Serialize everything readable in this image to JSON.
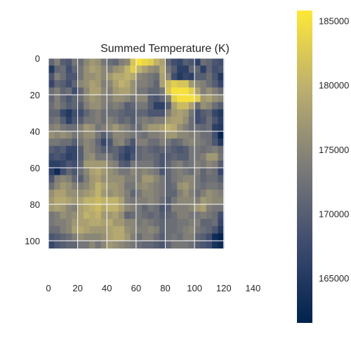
{
  "chart_data": {
    "type": "heatmap",
    "title": "Summed Temperature (K)",
    "xlabel": "",
    "ylabel": "",
    "grid": true,
    "colormap": "cividis",
    "x_range": [
      0,
      159
    ],
    "y_range": [
      0,
      119
    ],
    "x_ticks": [
      "0",
      "20",
      "40",
      "60",
      "80",
      "100",
      "120",
      "140"
    ],
    "y_ticks": [
      "0",
      "20",
      "40",
      "60",
      "80",
      "100"
    ],
    "colorbar": {
      "range": [
        161500,
        185800
      ],
      "ticks": [
        "165000",
        "170000",
        "175000",
        "180000",
        "185000"
      ]
    },
    "cell_size": 4,
    "values": [
      [
        171000,
        174000,
        170000,
        169000,
        173000,
        172000,
        175000,
        177000,
        176000,
        173000,
        172000,
        171000,
        174000,
        175000,
        182000,
        185000,
        184000,
        183000,
        180000,
        178000,
        171000,
        168000,
        167000,
        170000,
        169000,
        166000,
        172000,
        171000,
        169000,
        168000
      ],
      [
        165000,
        171000,
        172000,
        168000,
        171000,
        173000,
        176000,
        178000,
        177000,
        175000,
        174000,
        176000,
        177000,
        180000,
        183000,
        180000,
        178000,
        176000,
        175000,
        179000,
        173000,
        170000,
        166000,
        166000,
        171000,
        171000,
        166000,
        171000,
        168000,
        169000
      ],
      [
        169000,
        174000,
        172000,
        169000,
        169000,
        173000,
        176000,
        176000,
        177000,
        175000,
        177000,
        179000,
        179000,
        180000,
        179000,
        175000,
        174000,
        173000,
        172000,
        178000,
        175000,
        168000,
        165000,
        167000,
        166000,
        170000,
        170000,
        172000,
        169000,
        165000
      ],
      [
        167000,
        171000,
        170000,
        168000,
        171000,
        175000,
        176000,
        178000,
        177000,
        174000,
        175000,
        178000,
        180000,
        179000,
        176000,
        174000,
        174000,
        173000,
        171000,
        178000,
        181000,
        183000,
        182000,
        182000,
        177000,
        175000,
        174000,
        172000,
        170000,
        167000
      ],
      [
        172000,
        174000,
        171000,
        172000,
        168000,
        171000,
        175000,
        178000,
        178000,
        175000,
        174000,
        177000,
        178000,
        178000,
        176000,
        173000,
        173000,
        171000,
        171000,
        173000,
        182000,
        185000,
        185000,
        185000,
        183000,
        178000,
        174000,
        176000,
        174000,
        172000
      ],
      [
        171000,
        174000,
        171000,
        169000,
        171000,
        172000,
        175000,
        177000,
        176000,
        174000,
        174000,
        176000,
        176000,
        175000,
        173000,
        175000,
        175000,
        170000,
        169000,
        171000,
        174000,
        183000,
        185000,
        185000,
        185000,
        183000,
        177000,
        178000,
        176000,
        175000
      ],
      [
        172000,
        174000,
        172000,
        170000,
        171000,
        170000,
        174000,
        176000,
        176000,
        174000,
        173000,
        174000,
        173000,
        170000,
        171000,
        173000,
        173000,
        170000,
        166000,
        166000,
        170000,
        178000,
        181000,
        181000,
        178000,
        172000,
        176000,
        175000,
        172000,
        170000
      ],
      [
        171000,
        171000,
        167000,
        165000,
        168000,
        168000,
        171000,
        173000,
        174000,
        172000,
        172000,
        172000,
        171000,
        170000,
        170000,
        171000,
        171000,
        169000,
        169000,
        169000,
        174000,
        177000,
        178000,
        177000,
        173000,
        168000,
        170000,
        171000,
        167000,
        165000
      ],
      [
        172000,
        173000,
        170000,
        166000,
        169000,
        170000,
        173000,
        173000,
        174000,
        172000,
        174000,
        173000,
        171000,
        172000,
        170000,
        173000,
        174000,
        173000,
        174000,
        174000,
        177000,
        178000,
        178000,
        176000,
        172000,
        168000,
        169000,
        172000,
        169000,
        166000
      ],
      [
        174000,
        175000,
        173000,
        172000,
        172000,
        174000,
        177000,
        176000,
        173000,
        174000,
        175000,
        177000,
        175000,
        174000,
        172000,
        172000,
        175000,
        177000,
        177000,
        178000,
        180000,
        179000,
        176000,
        174000,
        172000,
        172000,
        171000,
        172000,
        166000,
        165000
      ],
      [
        176000,
        175000,
        176000,
        175000,
        173000,
        174000,
        176000,
        176000,
        173000,
        170000,
        172000,
        175000,
        175000,
        174000,
        173000,
        173000,
        172000,
        174000,
        174000,
        175000,
        177000,
        177000,
        175000,
        175000,
        174000,
        174000,
        172000,
        172000,
        168000,
        162000
      ],
      [
        173000,
        173000,
        172000,
        172000,
        170000,
        173000,
        175000,
        174000,
        171000,
        167000,
        169000,
        174000,
        175000,
        172000,
        169000,
        174000,
        174000,
        172000,
        172000,
        174000,
        173000,
        171000,
        172000,
        174000,
        175000,
        174000,
        173000,
        172000,
        169000,
        165000
      ],
      [
        170000,
        169000,
        170000,
        167000,
        167000,
        170000,
        175000,
        174000,
        172000,
        170000,
        170000,
        171000,
        169000,
        167000,
        168000,
        171000,
        172000,
        171000,
        170000,
        171000,
        171000,
        170000,
        169000,
        170000,
        173000,
        173000,
        172000,
        173000,
        174000,
        172000
      ],
      [
        168000,
        169000,
        168000,
        166000,
        167000,
        170000,
        175000,
        176000,
        173000,
        173000,
        173000,
        171000,
        168000,
        166000,
        169000,
        171000,
        172000,
        172000,
        171000,
        169000,
        170000,
        171000,
        170000,
        170000,
        173000,
        173000,
        174000,
        177000,
        177000,
        173000
      ],
      [
        166000,
        166000,
        167000,
        169000,
        168000,
        171000,
        177000,
        177000,
        177000,
        177000,
        175000,
        174000,
        170000,
        169000,
        173000,
        173000,
        173000,
        173000,
        171000,
        169000,
        171000,
        173000,
        174000,
        172000,
        173000,
        174000,
        173000,
        175000,
        174000,
        170000
      ],
      [
        166000,
        163000,
        168000,
        171000,
        169000,
        172000,
        175000,
        178000,
        179000,
        177000,
        176000,
        175000,
        173000,
        173000,
        175000,
        174000,
        175000,
        174000,
        173000,
        169000,
        171000,
        173000,
        174000,
        173000,
        172000,
        174000,
        171000,
        173000,
        172000,
        167000
      ],
      [
        169000,
        174000,
        175000,
        174000,
        171000,
        170000,
        174000,
        177000,
        178000,
        176000,
        176000,
        176000,
        176000,
        174000,
        174000,
        174000,
        177000,
        177000,
        175000,
        173000,
        171000,
        173000,
        174000,
        175000,
        175000,
        173000,
        171000,
        172000,
        172000,
        170000
      ],
      [
        172000,
        175000,
        177000,
        176000,
        174000,
        174000,
        175000,
        177000,
        180000,
        178000,
        177000,
        177000,
        176000,
        173000,
        173000,
        175000,
        176000,
        175000,
        174000,
        173000,
        171000,
        172000,
        176000,
        177000,
        175000,
        173000,
        172000,
        173000,
        173000,
        172000
      ],
      [
        176000,
        178000,
        178000,
        176000,
        176000,
        176000,
        177000,
        178000,
        180000,
        177000,
        176000,
        177000,
        176000,
        174000,
        171000,
        173000,
        175000,
        175000,
        174000,
        173000,
        171000,
        171000,
        174000,
        176000,
        174000,
        172000,
        174000,
        176000,
        175000,
        174000
      ],
      [
        177000,
        179000,
        179000,
        178000,
        177000,
        178000,
        180000,
        180000,
        181000,
        180000,
        180000,
        180000,
        178000,
        174000,
        173000,
        174000,
        174000,
        175000,
        174000,
        172000,
        170000,
        173000,
        175000,
        175000,
        175000,
        174000,
        177000,
        176000,
        175000,
        175000
      ],
      [
        177000,
        178000,
        177000,
        175000,
        174000,
        178000,
        179000,
        180000,
        181000,
        179000,
        180000,
        180000,
        178000,
        175000,
        174000,
        173000,
        171000,
        173000,
        172000,
        169000,
        170000,
        174000,
        174000,
        174000,
        175000,
        177000,
        178000,
        174000,
        173000,
        173000
      ],
      [
        173000,
        174000,
        176000,
        175000,
        176000,
        178000,
        180000,
        179000,
        180000,
        177000,
        177000,
        178000,
        176000,
        171000,
        172000,
        173000,
        172000,
        171000,
        172000,
        170000,
        171000,
        172000,
        174000,
        174000,
        173000,
        173000,
        174000,
        173000,
        172000,
        168000
      ],
      [
        173000,
        174000,
        174000,
        175000,
        177000,
        178000,
        178000,
        179000,
        179000,
        178000,
        179000,
        177000,
        177000,
        175000,
        175000,
        173000,
        174000,
        173000,
        172000,
        171000,
        172000,
        172000,
        173000,
        173000,
        174000,
        174000,
        171000,
        171000,
        172000,
        167000
      ],
      [
        172000,
        172000,
        174000,
        175000,
        178000,
        179000,
        178000,
        177000,
        177000,
        177000,
        178000,
        179000,
        179000,
        176000,
        175000,
        174000,
        174000,
        175000,
        174000,
        171000,
        172000,
        172000,
        173000,
        174000,
        175000,
        173000,
        172000,
        171000,
        169000,
        165000
      ],
      [
        169000,
        170000,
        171000,
        172000,
        174000,
        176000,
        175000,
        175000,
        175000,
        176000,
        178000,
        179000,
        179000,
        177000,
        174000,
        172000,
        174000,
        174000,
        172000,
        170000,
        172000,
        173000,
        172000,
        174000,
        174000,
        171000,
        170000,
        168000,
        163000,
        162000
      ],
      [
        167000,
        169000,
        170000,
        171000,
        171000,
        173000,
        173000,
        175000,
        173000,
        175000,
        177000,
        176000,
        175000,
        174000,
        173000,
        172000,
        171000,
        171000,
        170000,
        169000,
        171000,
        173000,
        173000,
        173000,
        172000,
        170000,
        169000,
        168000,
        164000,
        163000
      ]
    ]
  }
}
